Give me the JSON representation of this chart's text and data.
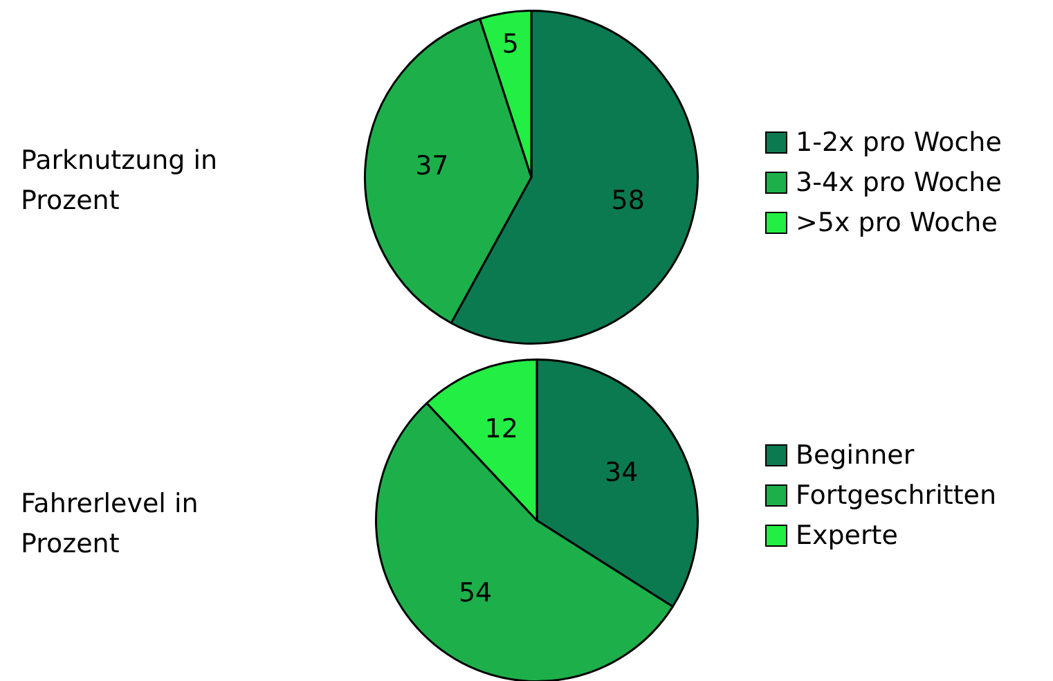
{
  "chart_data": [
    {
      "type": "pie",
      "title": "Parknutzung in Prozent",
      "categories": [
        "1-2x pro Woche",
        "3-4x pro Woche",
        ">5x pro Woche"
      ],
      "values": [
        58,
        37,
        5
      ],
      "colors": [
        "#0b7a50",
        "#1db04a",
        "#22ee44"
      ],
      "data_labels": true,
      "legend": "right"
    },
    {
      "type": "pie",
      "title": "Fahrerlevel in Prozent",
      "categories": [
        "Beginner",
        "Fortgeschritten",
        "Experte"
      ],
      "values": [
        34,
        54,
        12
      ],
      "colors": [
        "#0b7a50",
        "#1db04a",
        "#22ee44"
      ],
      "data_labels": true,
      "legend": "right"
    }
  ]
}
